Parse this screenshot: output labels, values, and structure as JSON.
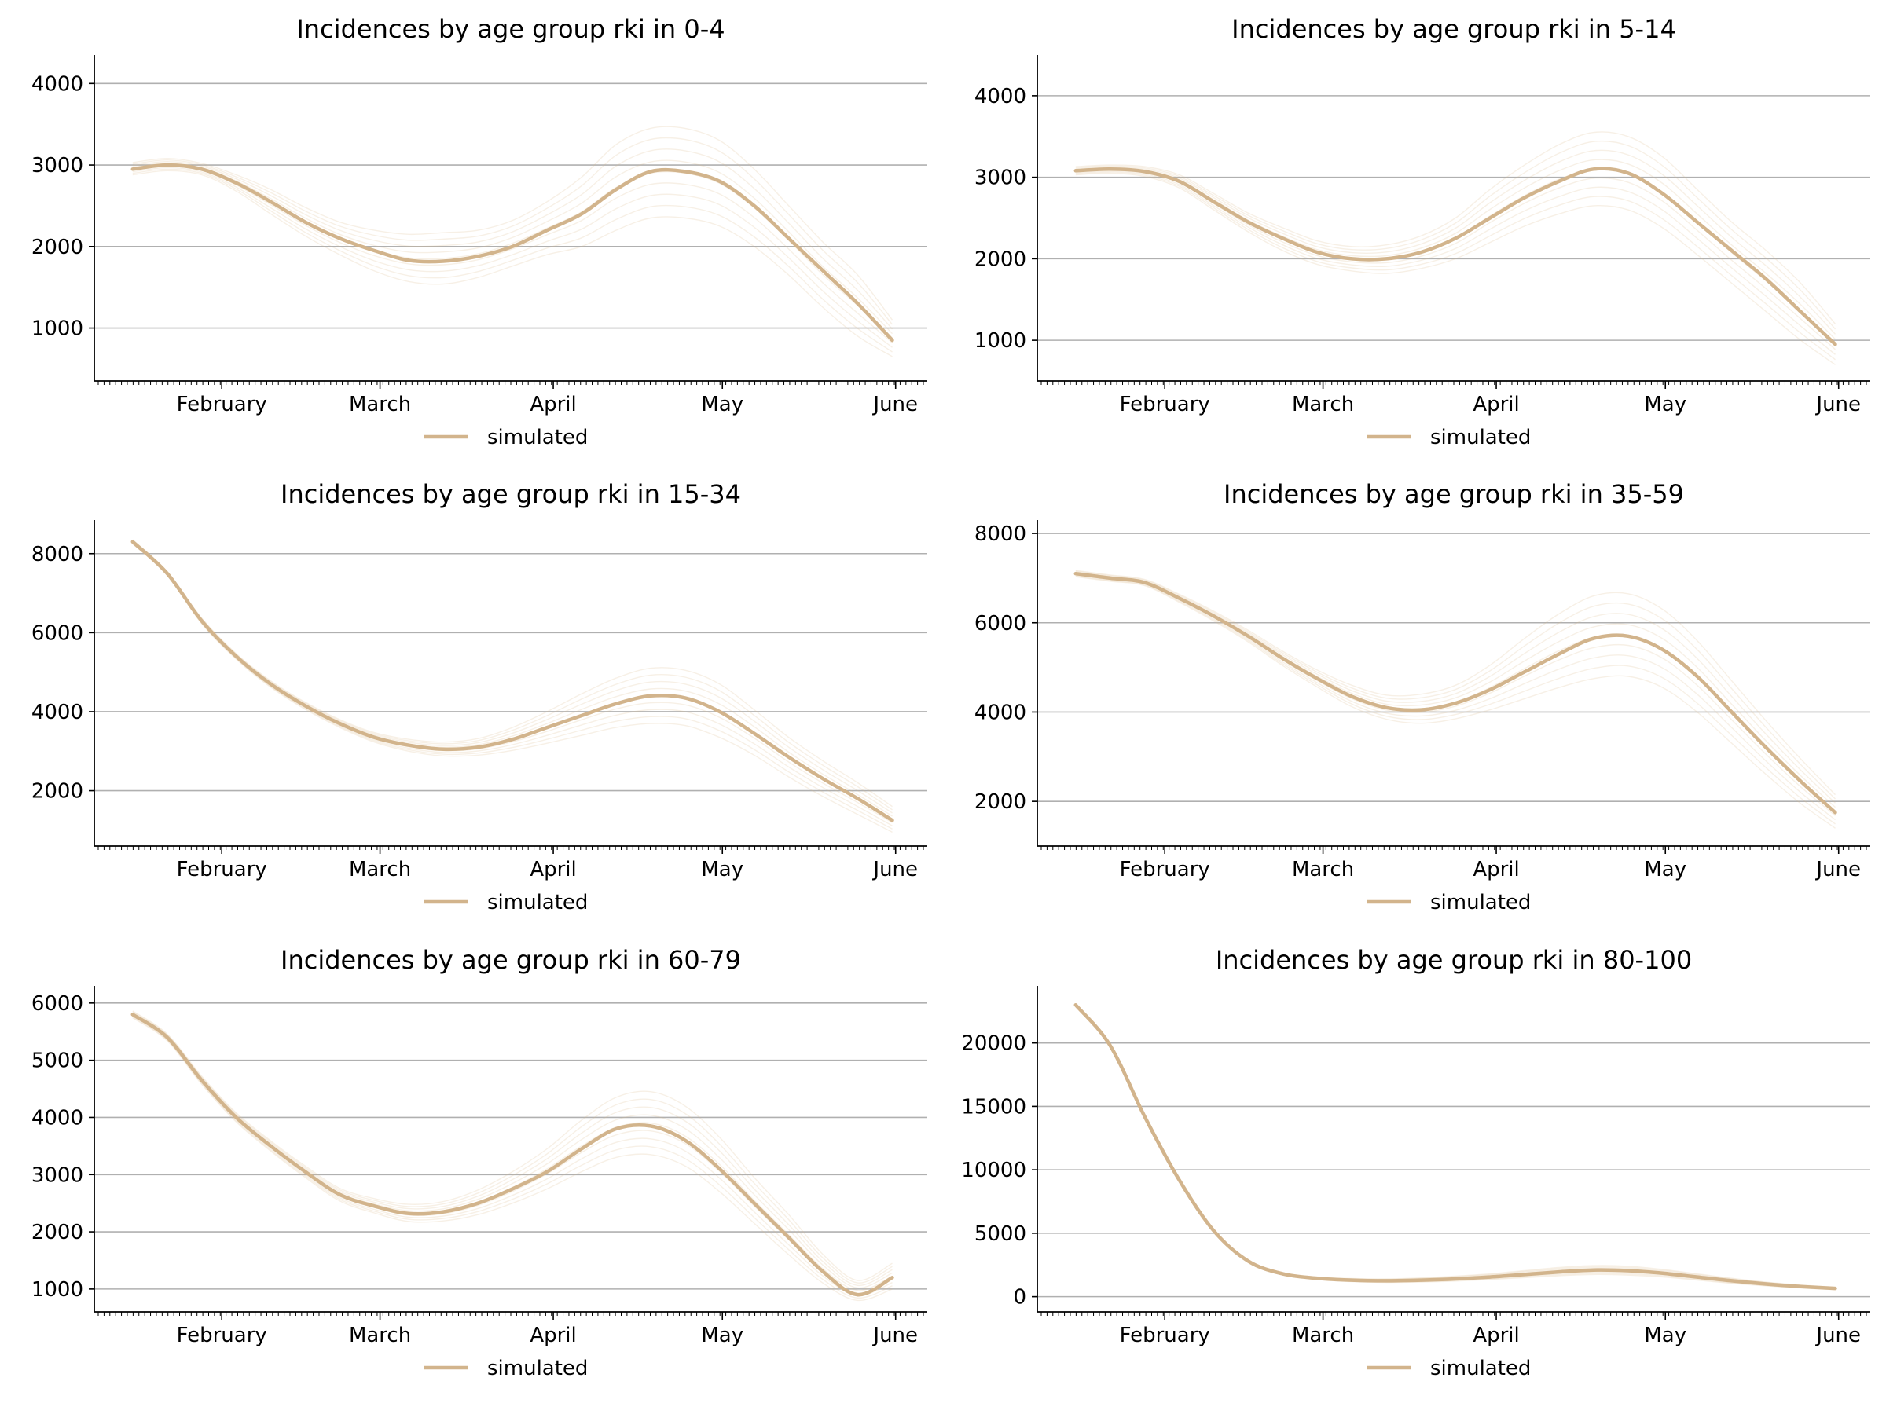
{
  "colors": {
    "series": "#d9b98f",
    "main": "#d2b48c",
    "grid": "#b0b0b0",
    "axis": "#000000"
  },
  "legend_label": "simulated",
  "chart_data": [
    {
      "type": "line",
      "title": "Incidences by age group rki in 0-4",
      "xlabel": "",
      "ylabel": "",
      "x_ticks": [
        "February",
        "March",
        "April",
        "May",
        "June"
      ],
      "y_ticks": [
        1000,
        2000,
        3000,
        4000
      ],
      "ylim": [
        350,
        4350
      ],
      "grid": "horizontal",
      "legend": "bottom-center",
      "series": [
        {
          "values": [
            2950,
            3000,
            2950,
            2780,
            2550,
            2300,
            2100,
            1950,
            1830,
            1820,
            1880,
            2000,
            2200,
            2400,
            2700,
            2920,
            2920,
            2800,
            2500,
            2100,
            1700,
            1300,
            850
          ]
        }
      ],
      "band_low": [
        2880,
        2930,
        2880,
        2680,
        2400,
        2130,
        1900,
        1700,
        1570,
        1540,
        1620,
        1760,
        1900,
        2000,
        2200,
        2350,
        2350,
        2250,
        2000,
        1650,
        1250,
        900,
        650
      ],
      "band_high": [
        3030,
        3080,
        3020,
        2880,
        2700,
        2480,
        2300,
        2200,
        2150,
        2170,
        2200,
        2320,
        2550,
        2850,
        3250,
        3450,
        3450,
        3300,
        2950,
        2500,
        2050,
        1650,
        1100
      ]
    },
    {
      "type": "line",
      "title": "Incidences by age group rki in 5-14",
      "xlabel": "",
      "ylabel": "",
      "x_ticks": [
        "February",
        "March",
        "April",
        "May",
        "June"
      ],
      "y_ticks": [
        1000,
        2000,
        3000,
        4000
      ],
      "ylim": [
        500,
        4500
      ],
      "grid": "horizontal",
      "legend": "bottom-center",
      "series": [
        {
          "values": [
            3080,
            3100,
            3070,
            2950,
            2700,
            2450,
            2250,
            2080,
            2000,
            2000,
            2080,
            2250,
            2500,
            2750,
            2950,
            3100,
            3050,
            2800,
            2450,
            2100,
            1750,
            1350,
            950
          ]
        }
      ],
      "band_low": [
        3030,
        3050,
        3010,
        2870,
        2600,
        2330,
        2100,
        1930,
        1850,
        1820,
        1880,
        2000,
        2200,
        2400,
        2550,
        2650,
        2600,
        2380,
        2050,
        1700,
        1350,
        1000,
        700
      ],
      "band_high": [
        3130,
        3150,
        3130,
        3030,
        2800,
        2560,
        2380,
        2220,
        2150,
        2170,
        2280,
        2500,
        2850,
        3150,
        3400,
        3550,
        3500,
        3250,
        2850,
        2450,
        2100,
        1700,
        1200
      ]
    },
    {
      "type": "line",
      "title": "Incidences by age group rki in 15-34",
      "xlabel": "",
      "ylabel": "",
      "x_ticks": [
        "February",
        "March",
        "April",
        "May",
        "June"
      ],
      "y_ticks": [
        2000,
        4000,
        6000,
        8000
      ],
      "ylim": [
        600,
        8850
      ],
      "grid": "horizontal",
      "legend": "bottom-center",
      "series": [
        {
          "values": [
            8300,
            7500,
            6300,
            5400,
            4700,
            4150,
            3700,
            3350,
            3150,
            3050,
            3100,
            3300,
            3600,
            3900,
            4200,
            4400,
            4350,
            4000,
            3450,
            2850,
            2300,
            1800,
            1250
          ]
        }
      ],
      "band_low": [
        8250,
        7450,
        6230,
        5330,
        4620,
        4060,
        3600,
        3230,
        3000,
        2880,
        2900,
        3020,
        3200,
        3400,
        3600,
        3700,
        3650,
        3350,
        2900,
        2350,
        1850,
        1400,
        950
      ],
      "band_high": [
        8350,
        7550,
        6370,
        5470,
        4780,
        4240,
        3800,
        3470,
        3300,
        3230,
        3320,
        3600,
        4000,
        4450,
        4850,
        5100,
        5050,
        4700,
        4050,
        3350,
        2750,
        2200,
        1600
      ]
    },
    {
      "type": "line",
      "title": "Incidences by age group rki in 35-59",
      "xlabel": "",
      "ylabel": "",
      "x_ticks": [
        "February",
        "March",
        "April",
        "May",
        "June"
      ],
      "y_ticks": [
        2000,
        4000,
        6000,
        8000
      ],
      "ylim": [
        1000,
        8300
      ],
      "grid": "horizontal",
      "legend": "bottom-center",
      "series": [
        {
          "values": [
            7100,
            7000,
            6900,
            6550,
            6150,
            5700,
            5200,
            4750,
            4350,
            4100,
            4050,
            4200,
            4500,
            4900,
            5300,
            5650,
            5700,
            5400,
            4800,
            4000,
            3200,
            2450,
            1750
          ]
        }
      ],
      "band_low": [
        7030,
        6930,
        6830,
        6460,
        6040,
        5570,
        5040,
        4560,
        4120,
        3840,
        3750,
        3850,
        4050,
        4300,
        4550,
        4750,
        4800,
        4550,
        4000,
        3300,
        2600,
        1950,
        1400
      ],
      "band_high": [
        7170,
        7070,
        6970,
        6640,
        6260,
        5830,
        5360,
        4940,
        4600,
        4380,
        4400,
        4600,
        5050,
        5650,
        6200,
        6600,
        6650,
        6300,
        5600,
        4700,
        3800,
        2950,
        2150
      ]
    },
    {
      "type": "line",
      "title": "Incidences by age group rki in 60-79",
      "xlabel": "",
      "ylabel": "",
      "x_ticks": [
        "February",
        "March",
        "April",
        "May",
        "June"
      ],
      "y_ticks": [
        1000,
        2000,
        3000,
        4000,
        5000,
        6000
      ],
      "ylim": [
        600,
        6300
      ],
      "grid": "horizontal",
      "legend": "bottom-center",
      "series": [
        {
          "values": [
            5800,
            5400,
            4650,
            4000,
            3500,
            3050,
            2650,
            2450,
            2320,
            2350,
            2500,
            2750,
            3050,
            3450,
            3800,
            3850,
            3600,
            3100,
            2500,
            1900,
            1300,
            900,
            1200
          ]
        }
      ],
      "band_low": [
        5740,
        5340,
        4580,
        3920,
        3410,
        2950,
        2540,
        2330,
        2180,
        2190,
        2300,
        2500,
        2750,
        3050,
        3300,
        3350,
        3150,
        2700,
        2150,
        1600,
        1100,
        800,
        1000
      ],
      "band_high": [
        5860,
        5460,
        4720,
        4080,
        3590,
        3150,
        2760,
        2580,
        2480,
        2530,
        2730,
        3050,
        3450,
        3950,
        4350,
        4450,
        4200,
        3650,
        2950,
        2300,
        1600,
        1150,
        1450
      ]
    },
    {
      "type": "line",
      "title": "Incidences by age group rki in 80-100",
      "xlabel": "",
      "ylabel": "",
      "x_ticks": [
        "February",
        "March",
        "April",
        "May",
        "June"
      ],
      "y_ticks": [
        0,
        5000,
        10000,
        15000,
        20000
      ],
      "ylim": [
        -1200,
        24500
      ],
      "grid": "horizontal",
      "legend": "bottom-center",
      "series": [
        {
          "values": [
            23000,
            19800,
            14200,
            9200,
            5200,
            2800,
            1800,
            1450,
            1300,
            1250,
            1300,
            1400,
            1550,
            1750,
            1950,
            2100,
            2050,
            1850,
            1550,
            1250,
            1000,
            800,
            650
          ]
        }
      ],
      "band_low": [
        22900,
        19700,
        14100,
        9100,
        5100,
        2700,
        1700,
        1350,
        1180,
        1120,
        1150,
        1230,
        1350,
        1500,
        1650,
        1750,
        1700,
        1550,
        1300,
        1050,
        850,
        680,
        550
      ],
      "band_high": [
        23100,
        19900,
        14300,
        9300,
        5300,
        2900,
        1900,
        1560,
        1430,
        1400,
        1480,
        1620,
        1800,
        2050,
        2300,
        2450,
        2400,
        2150,
        1800,
        1450,
        1150,
        920,
        750
      ]
    }
  ]
}
